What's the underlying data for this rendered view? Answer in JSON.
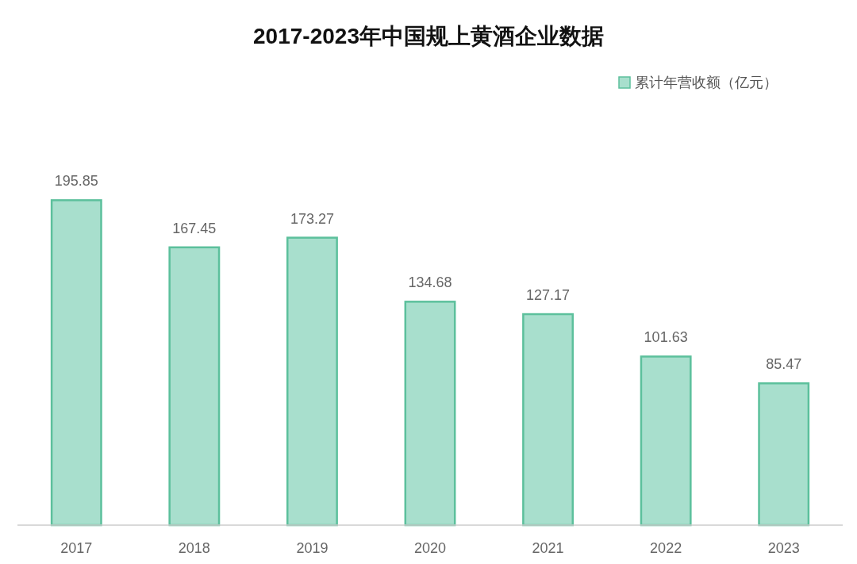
{
  "chart_data": {
    "type": "bar",
    "title": "2017-2023年中国规上黄酒企业数据",
    "categories": [
      "2017",
      "2018",
      "2019",
      "2020",
      "2021",
      "2022",
      "2023"
    ],
    "series": [
      {
        "name": "累计年营收额（亿元）",
        "color": "#a8dfcd",
        "values": [
          195.85,
          167.45,
          173.27,
          134.68,
          127.17,
          101.63,
          85.47
        ]
      }
    ],
    "data_labels": true,
    "legend": "top right",
    "grid": false
  }
}
